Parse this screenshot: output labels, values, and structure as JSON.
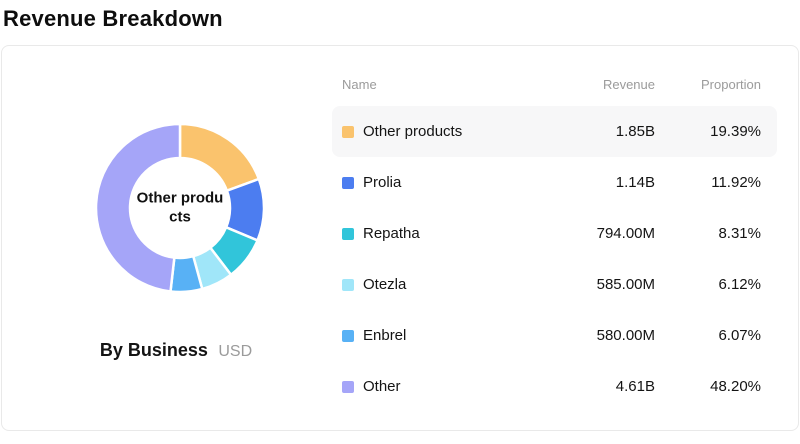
{
  "page_title": "Revenue Breakdown",
  "footer": {
    "label": "By Business",
    "unit": "USD"
  },
  "table": {
    "headers": {
      "name": "Name",
      "revenue": "Revenue",
      "proportion": "Proportion"
    }
  },
  "chart_data": {
    "type": "pie",
    "subtype": "donut",
    "title": "By Business",
    "unit": "USD",
    "center_label": "Other products",
    "start_angle": "top",
    "direction": "clockwise",
    "legend_position": "right-table",
    "items": [
      {
        "name": "Other products",
        "revenue": "1.85B",
        "proportion": "19.39%",
        "value": 19.39,
        "color": "#FAC36D",
        "highlighted": true
      },
      {
        "name": "Prolia",
        "revenue": "1.14B",
        "proportion": "11.92%",
        "value": 11.92,
        "color": "#4C7DF0",
        "highlighted": false
      },
      {
        "name": "Repatha",
        "revenue": "794.00M",
        "proportion": "8.31%",
        "value": 8.31,
        "color": "#31C5DA",
        "highlighted": false
      },
      {
        "name": "Otezla",
        "revenue": "585.00M",
        "proportion": "6.12%",
        "value": 6.12,
        "color": "#A0E6F9",
        "highlighted": false
      },
      {
        "name": "Enbrel",
        "revenue": "580.00M",
        "proportion": "6.07%",
        "value": 6.07,
        "color": "#58B1F5",
        "highlighted": false
      },
      {
        "name": "Other",
        "revenue": "4.61B",
        "proportion": "48.20%",
        "value": 48.2,
        "color": "#A5A5F8",
        "highlighted": false
      }
    ]
  }
}
